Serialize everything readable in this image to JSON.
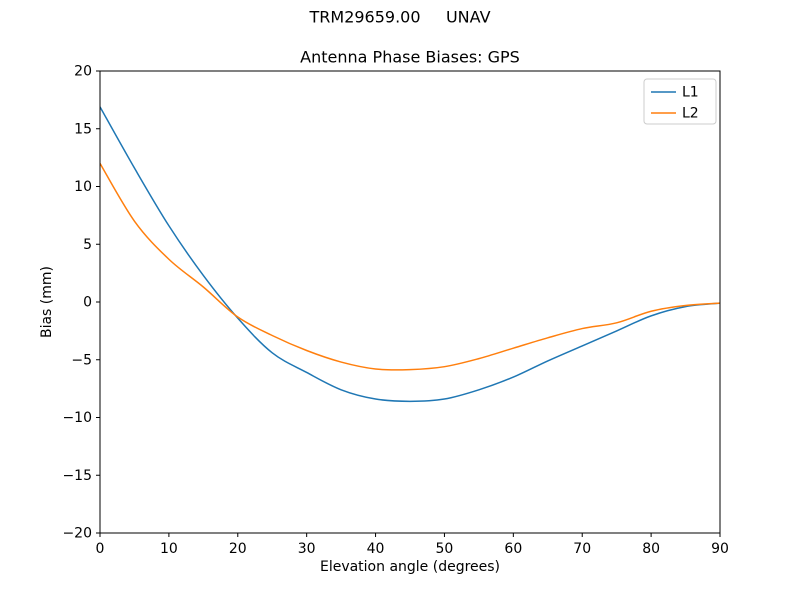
{
  "chart_data": {
    "type": "line",
    "suptitle": "TRM29659.00     UNAV",
    "title": "Antenna Phase Biases: GPS",
    "xlabel": "Elevation angle (degrees)",
    "ylabel": "Bias (mm)",
    "xlim": [
      0,
      90
    ],
    "ylim": [
      -20,
      20
    ],
    "xticks": [
      0,
      10,
      20,
      30,
      40,
      50,
      60,
      70,
      80,
      90
    ],
    "yticks": [
      -20,
      -15,
      -10,
      -5,
      0,
      5,
      10,
      15,
      20
    ],
    "grid": false,
    "legend_position": "upper right",
    "x": [
      0,
      5,
      10,
      15,
      20,
      25,
      30,
      35,
      40,
      45,
      50,
      55,
      60,
      65,
      70,
      75,
      80,
      85,
      90
    ],
    "series": [
      {
        "name": "L1",
        "color": "#1f77b4",
        "values": [
          16.9,
          11.6,
          6.6,
          2.3,
          -1.4,
          -4.4,
          -6.1,
          -7.6,
          -8.4,
          -8.6,
          -8.4,
          -7.6,
          -6.5,
          -5.1,
          -3.8,
          -2.5,
          -1.2,
          -0.4,
          -0.1
        ]
      },
      {
        "name": "L2",
        "color": "#ff7f0e",
        "values": [
          12.0,
          7.0,
          3.7,
          1.3,
          -1.3,
          -2.9,
          -4.2,
          -5.2,
          -5.8,
          -5.85,
          -5.6,
          -4.9,
          -4.0,
          -3.1,
          -2.3,
          -1.8,
          -0.8,
          -0.3,
          -0.1
        ]
      }
    ]
  }
}
